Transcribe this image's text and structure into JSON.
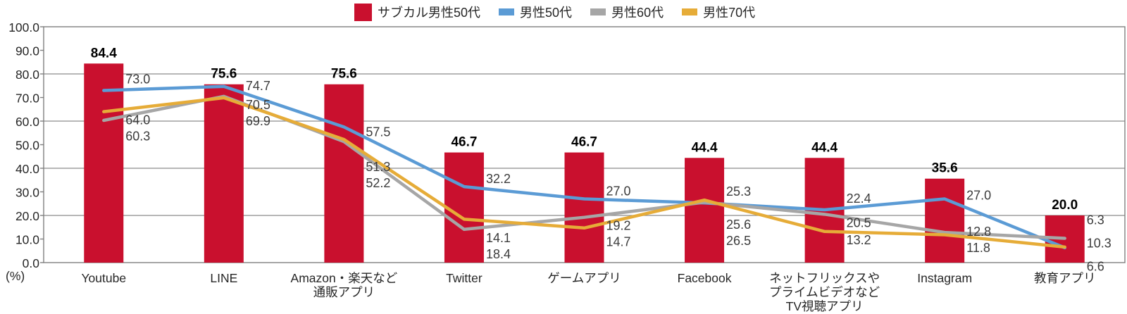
{
  "legend": {
    "items": [
      {
        "id": "subculture-male-50s",
        "label": "サブカル男性50代",
        "color": "#C9102E",
        "swatch": "bar"
      },
      {
        "id": "male-50s",
        "label": "男性50代",
        "color": "#5B9BD5",
        "swatch": "line"
      },
      {
        "id": "male-60s",
        "label": "男性60代",
        "color": "#A6A6A6",
        "swatch": "line"
      },
      {
        "id": "male-70s",
        "label": "男性70代",
        "color": "#E6AC38",
        "swatch": "line"
      }
    ]
  },
  "y_axis": {
    "unit_label": "(%)",
    "tick_labels": [
      "100.0",
      "90.0",
      "80.0",
      "70.0",
      "60.0",
      "50.0",
      "40.0",
      "30.0",
      "20.0",
      "10.0",
      "0.0"
    ]
  },
  "chart_data": {
    "type": "bar+line",
    "title": "",
    "legend_position": "top",
    "ylim": [
      0,
      100
    ],
    "ytick_step": 10,
    "gridlines_at": [
      20,
      40,
      60,
      80
    ],
    "grid": "horizontal-only",
    "categories": [
      {
        "id": "youtube",
        "lines": [
          "Youtube"
        ]
      },
      {
        "id": "line-app",
        "lines": [
          "LINE"
        ]
      },
      {
        "id": "amazon-rakuten-shopping-apps",
        "lines": [
          "Amazon・楽天など",
          "通販アプリ"
        ]
      },
      {
        "id": "twitter",
        "lines": [
          "Twitter"
        ]
      },
      {
        "id": "game-apps",
        "lines": [
          "ゲームアプリ"
        ]
      },
      {
        "id": "facebook",
        "lines": [
          "Facebook"
        ]
      },
      {
        "id": "netflix-prime-video-tv-apps",
        "lines": [
          "ネットフリックスや",
          "プライムビデオなど",
          "TV視聴アプリ"
        ]
      },
      {
        "id": "instagram",
        "lines": [
          "Instagram"
        ]
      },
      {
        "id": "education-apps",
        "lines": [
          "教育アプリ"
        ]
      }
    ],
    "bar_series": {
      "name": "サブカル男性50代",
      "color": "#C9102E",
      "values": [
        84.4,
        75.6,
        75.6,
        46.7,
        46.7,
        44.4,
        44.4,
        35.6,
        20.0
      ]
    },
    "line_series": [
      {
        "name": "男性50代",
        "color": "#5B9BD5",
        "values": [
          73.0,
          74.7,
          57.5,
          32.2,
          27.0,
          25.3,
          22.4,
          27.0,
          6.3
        ]
      },
      {
        "name": "男性60代",
        "color": "#A6A6A6",
        "values": [
          60.3,
          70.5,
          51.3,
          14.1,
          19.2,
          25.6,
          20.5,
          12.8,
          10.3
        ]
      },
      {
        "name": "男性70代",
        "color": "#E6AC38",
        "values": [
          64.0,
          69.9,
          52.2,
          18.4,
          14.7,
          26.5,
          13.2,
          11.8,
          6.6
        ]
      }
    ],
    "label_stack_order": [
      [
        2,
        1
      ],
      [
        1,
        2
      ],
      [
        1,
        2
      ],
      [
        1,
        2
      ],
      [
        1,
        2
      ],
      [
        1,
        2
      ],
      [
        1,
        2
      ],
      [
        1,
        2
      ],
      [
        0,
        1,
        2
      ]
    ]
  }
}
